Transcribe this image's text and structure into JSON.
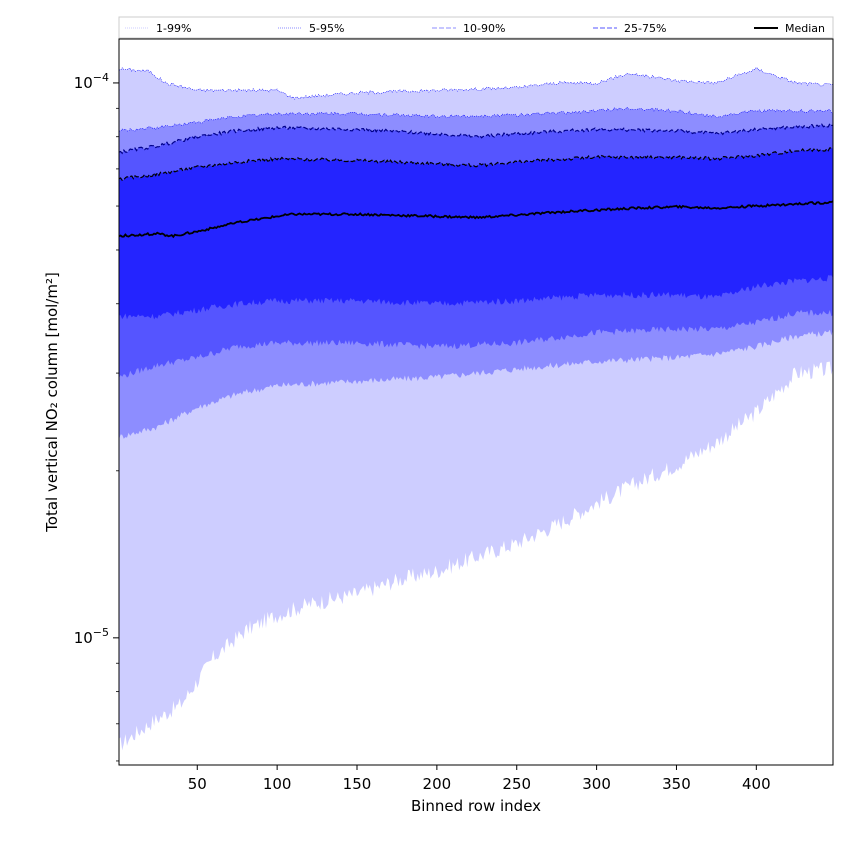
{
  "chart_data": {
    "type": "area",
    "xlabel": "Binned row index",
    "ylabel": "Total vertical NO₂ column [mol/m²]",
    "xlim": [
      1,
      448
    ],
    "ylim": [
      5.9e-06,
      0.00012
    ],
    "yscale": "log",
    "x_ticks": [
      50,
      100,
      150,
      200,
      250,
      300,
      350,
      400
    ],
    "y_ticks": [
      {
        "value": 1e-05,
        "base": "10",
        "exp": "−5"
      },
      {
        "value": 0.0001,
        "base": "10",
        "exp": "−4"
      }
    ],
    "legend_position": "top (above plot, single row)",
    "bands": [
      {
        "name": "1-99%",
        "color": "#cdcdff",
        "line_color": "#0000ff",
        "line_style": "dotted",
        "lower": [
          [
            1,
            6.4e-06
          ],
          [
            20,
            7e-06
          ],
          [
            40,
            7.6e-06
          ],
          [
            60,
            9.2e-06
          ],
          [
            80,
            1.03e-05
          ],
          [
            100,
            1.1e-05
          ],
          [
            120,
            1.15e-05
          ],
          [
            150,
            1.2e-05
          ],
          [
            175,
            1.27e-05
          ],
          [
            200,
            1.32e-05
          ],
          [
            225,
            1.4e-05
          ],
          [
            250,
            1.48e-05
          ],
          [
            275,
            1.6e-05
          ],
          [
            300,
            1.75e-05
          ],
          [
            325,
            1.9e-05
          ],
          [
            350,
            2.05e-05
          ],
          [
            375,
            2.25e-05
          ],
          [
            400,
            2.55e-05
          ],
          [
            425,
            3e-05
          ],
          [
            448,
            3.05e-05
          ]
        ],
        "upper": [
          [
            1,
            0.000106
          ],
          [
            20,
            0.000105
          ],
          [
            30,
            0.0001
          ],
          [
            50,
            9.7e-05
          ],
          [
            75,
            9.7e-05
          ],
          [
            100,
            9.7e-05
          ],
          [
            110,
            9.4e-05
          ],
          [
            150,
            9.6e-05
          ],
          [
            200,
            9.7e-05
          ],
          [
            250,
            9.8e-05
          ],
          [
            275,
            0.0001
          ],
          [
            300,
            0.0001
          ],
          [
            320,
            0.000104
          ],
          [
            350,
            0.000101
          ],
          [
            375,
            0.0001
          ],
          [
            400,
            0.000106
          ],
          [
            425,
            0.0001
          ],
          [
            448,
            9.9e-05
          ]
        ]
      },
      {
        "name": "5-95%",
        "color": "#8d8dff",
        "line_color": "#0000ff",
        "line_style": "dotted",
        "lower": [
          [
            1,
            2.3e-05
          ],
          [
            25,
            2.4e-05
          ],
          [
            50,
            2.6e-05
          ],
          [
            75,
            2.75e-05
          ],
          [
            100,
            2.85e-05
          ],
          [
            150,
            2.9e-05
          ],
          [
            200,
            2.95e-05
          ],
          [
            250,
            3.05e-05
          ],
          [
            300,
            3.15e-05
          ],
          [
            350,
            3.2e-05
          ],
          [
            375,
            3.25e-05
          ],
          [
            400,
            3.35e-05
          ],
          [
            425,
            3.5e-05
          ],
          [
            448,
            3.55e-05
          ]
        ],
        "upper": [
          [
            1,
            8.2e-05
          ],
          [
            25,
            8.3e-05
          ],
          [
            50,
            8.5e-05
          ],
          [
            75,
            8.7e-05
          ],
          [
            100,
            8.8e-05
          ],
          [
            150,
            8.8e-05
          ],
          [
            200,
            8.7e-05
          ],
          [
            250,
            8.75e-05
          ],
          [
            300,
            8.9e-05
          ],
          [
            320,
            9e-05
          ],
          [
            350,
            8.9e-05
          ],
          [
            375,
            8.7e-05
          ],
          [
            400,
            8.9e-05
          ],
          [
            448,
            8.9e-05
          ]
        ]
      },
      {
        "name": "10-90%",
        "color": "#5555ff",
        "line_color": "#00008b",
        "line_style": "dashed",
        "lower": [
          [
            1,
            2.95e-05
          ],
          [
            25,
            3.1e-05
          ],
          [
            50,
            3.2e-05
          ],
          [
            75,
            3.35e-05
          ],
          [
            100,
            3.4e-05
          ],
          [
            150,
            3.4e-05
          ],
          [
            200,
            3.35e-05
          ],
          [
            250,
            3.4e-05
          ],
          [
            300,
            3.55e-05
          ],
          [
            350,
            3.6e-05
          ],
          [
            375,
            3.6e-05
          ],
          [
            400,
            3.7e-05
          ],
          [
            425,
            3.85e-05
          ],
          [
            448,
            3.85e-05
          ]
        ],
        "upper": [
          [
            1,
            7.5e-05
          ],
          [
            25,
            7.7e-05
          ],
          [
            50,
            8e-05
          ],
          [
            75,
            8.2e-05
          ],
          [
            100,
            8.3e-05
          ],
          [
            150,
            8.25e-05
          ],
          [
            200,
            8.1e-05
          ],
          [
            225,
            8e-05
          ],
          [
            250,
            8.1e-05
          ],
          [
            300,
            8.25e-05
          ],
          [
            350,
            8.2e-05
          ],
          [
            375,
            8.1e-05
          ],
          [
            400,
            8.25e-05
          ],
          [
            448,
            8.4e-05
          ]
        ]
      },
      {
        "name": "25-75%",
        "color": "#2424ff",
        "line_color": "#000000",
        "line_style": "dashed",
        "lower": [
          [
            1,
            3.8e-05
          ],
          [
            25,
            3.8e-05
          ],
          [
            50,
            3.9e-05
          ],
          [
            75,
            4e-05
          ],
          [
            100,
            4.05e-05
          ],
          [
            150,
            4.05e-05
          ],
          [
            200,
            4e-05
          ],
          [
            250,
            4.05e-05
          ],
          [
            300,
            4.15e-05
          ],
          [
            350,
            4.15e-05
          ],
          [
            375,
            4.1e-05
          ],
          [
            400,
            4.3e-05
          ],
          [
            425,
            4.4e-05
          ],
          [
            448,
            4.45e-05
          ]
        ],
        "upper": [
          [
            1,
            6.7e-05
          ],
          [
            25,
            6.85e-05
          ],
          [
            50,
            7.05e-05
          ],
          [
            75,
            7.2e-05
          ],
          [
            100,
            7.3e-05
          ],
          [
            150,
            7.25e-05
          ],
          [
            200,
            7.15e-05
          ],
          [
            225,
            7.1e-05
          ],
          [
            250,
            7.2e-05
          ],
          [
            300,
            7.35e-05
          ],
          [
            350,
            7.35e-05
          ],
          [
            375,
            7.3e-05
          ],
          [
            400,
            7.4e-05
          ],
          [
            425,
            7.55e-05
          ],
          [
            448,
            7.6e-05
          ]
        ]
      }
    ],
    "median": {
      "name": "Median",
      "color": "#000000",
      "line_style": "solid",
      "points": [
        [
          1,
          5.3e-05
        ],
        [
          25,
          5.35e-05
        ],
        [
          35,
          5.3e-05
        ],
        [
          50,
          5.4e-05
        ],
        [
          75,
          5.6e-05
        ],
        [
          100,
          5.75e-05
        ],
        [
          110,
          5.8e-05
        ],
        [
          150,
          5.8e-05
        ],
        [
          200,
          5.75e-05
        ],
        [
          225,
          5.72e-05
        ],
        [
          250,
          5.78e-05
        ],
        [
          275,
          5.85e-05
        ],
        [
          300,
          5.9e-05
        ],
        [
          325,
          5.95e-05
        ],
        [
          350,
          5.98e-05
        ],
        [
          375,
          5.95e-05
        ],
        [
          400,
          6e-05
        ],
        [
          425,
          6.05e-05
        ],
        [
          448,
          6.1e-05
        ]
      ]
    }
  }
}
